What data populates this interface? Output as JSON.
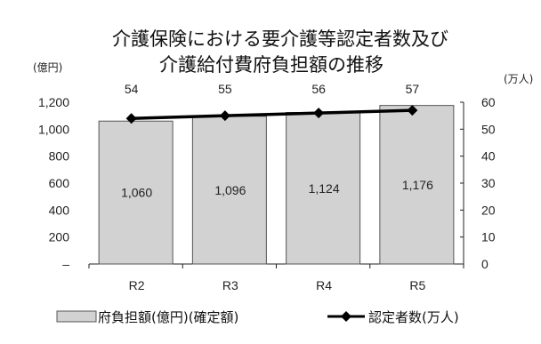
{
  "title_line1": "介護保険における要介護等認定者数及び",
  "title_line2": "介護給付費府負担額の推移",
  "left_unit": "(億円)",
  "right_unit": "(万人)",
  "colors": {
    "bar_fill": "#d2d2d2",
    "bar_stroke": "#555555",
    "line": "#000000"
  },
  "chart_data": {
    "type": "bar",
    "categories": [
      "R2",
      "R3",
      "R4",
      "R5"
    ],
    "series": [
      {
        "name": "府負担額(億円)(確定額)",
        "type": "bar",
        "axis": "left",
        "values": [
          1060,
          1096,
          1124,
          1176
        ],
        "labels": [
          "1,060",
          "1,096",
          "1,124",
          "1,176"
        ]
      },
      {
        "name": "認定者数(万人)",
        "type": "line",
        "axis": "right",
        "values": [
          54,
          55,
          56,
          57
        ],
        "labels": [
          "54",
          "55",
          "56",
          "57"
        ]
      }
    ],
    "y_left": {
      "ylim": [
        0,
        1200
      ],
      "ticks": [
        0,
        200,
        400,
        600,
        800,
        1000,
        1200
      ],
      "tick_labels": [
        "–",
        "200",
        "400",
        "600",
        "800",
        "1,000",
        "1,200"
      ]
    },
    "y_right": {
      "ylim": [
        0,
        60
      ],
      "ticks": [
        0,
        10,
        20,
        30,
        40,
        50,
        60
      ],
      "tick_labels": [
        "0",
        "10",
        "20",
        "30",
        "40",
        "50",
        "60"
      ]
    },
    "legend_position": "bottom"
  }
}
